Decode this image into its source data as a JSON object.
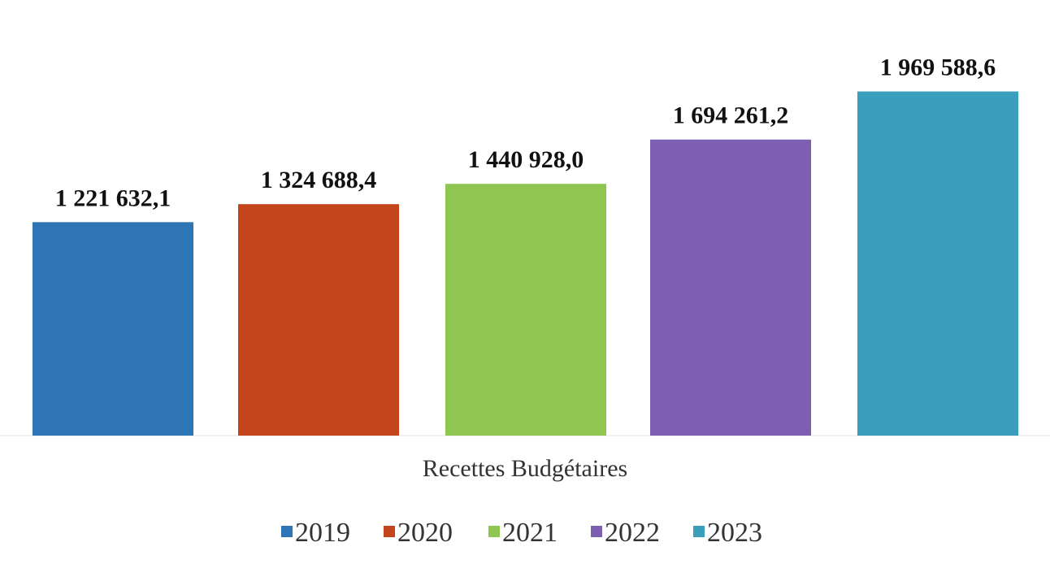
{
  "chart_data": {
    "type": "bar",
    "categories": [
      "Recettes Budgétaires"
    ],
    "xlabel": "Recettes Budgétaires",
    "ylim": [
      0,
      2200000
    ],
    "grid": false,
    "legend_position": "bottom",
    "series": [
      {
        "name": "2019",
        "values": [
          1221632.1
        ],
        "label": "1 221 632,1",
        "color": "#2e75b6"
      },
      {
        "name": "2020",
        "values": [
          1324688.4
        ],
        "label": "1 324 688,4",
        "color": "#c4451c"
      },
      {
        "name": "2021",
        "values": [
          1440928.0
        ],
        "label": "1 440 928,0",
        "color": "#8fc652"
      },
      {
        "name": "2022",
        "values": [
          1694261.2
        ],
        "label": "1 694 261,2",
        "color": "#7d5fb1"
      },
      {
        "name": "2023",
        "values": [
          1969588.6
        ],
        "label": "1 969 588,6",
        "color": "#3a9fbc"
      }
    ]
  }
}
